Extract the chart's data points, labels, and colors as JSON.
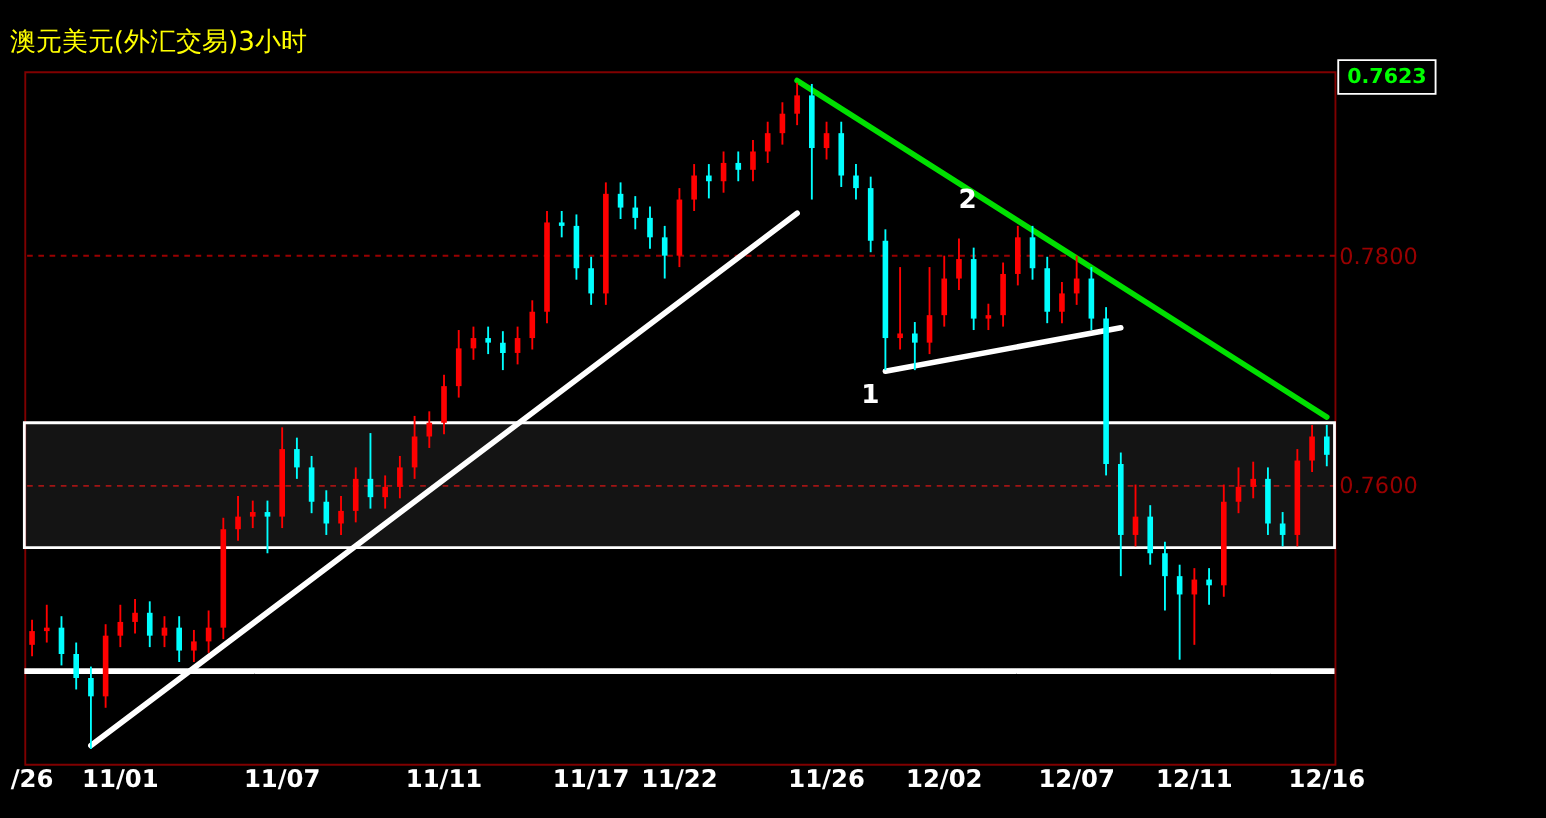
{
  "chart_data": {
    "type": "candlestick",
    "title": "澳元美元(外汇交易)3小时",
    "categories": [
      "/26",
      null,
      null,
      null,
      null,
      null,
      "11/01",
      null,
      null,
      null,
      null,
      null,
      null,
      null,
      null,
      null,
      null,
      "11/07",
      null,
      null,
      null,
      null,
      null,
      null,
      null,
      null,
      null,
      null,
      "11/11",
      null,
      null,
      null,
      null,
      null,
      null,
      null,
      null,
      null,
      "11/17",
      null,
      null,
      null,
      null,
      null,
      "11/22",
      null,
      null,
      null,
      null,
      null,
      null,
      null,
      null,
      null,
      "11/26",
      null,
      null,
      null,
      null,
      null,
      null,
      null,
      "12/02",
      null,
      null,
      null,
      null,
      null,
      null,
      null,
      null,
      "12/07",
      null,
      null,
      null,
      null,
      null,
      null,
      null,
      "12/11",
      null,
      null,
      null,
      null,
      null,
      null,
      null,
      null,
      "12/16"
    ],
    "ohlc": [
      [
        0.746,
        0.7482,
        0.745,
        0.7472
      ],
      [
        0.7472,
        0.7495,
        0.7462,
        0.7475
      ],
      [
        0.7475,
        0.7485,
        0.7442,
        0.7452
      ],
      [
        0.7452,
        0.7462,
        0.7421,
        0.7431
      ],
      [
        0.7431,
        0.7441,
        0.7369,
        0.7415
      ],
      [
        0.7415,
        0.7478,
        0.7405,
        0.7468
      ],
      [
        0.7468,
        0.7495,
        0.7458,
        0.748
      ],
      [
        0.748,
        0.75,
        0.747,
        0.7488
      ],
      [
        0.7488,
        0.7498,
        0.7458,
        0.7468
      ],
      [
        0.7468,
        0.7485,
        0.7458,
        0.7475
      ],
      [
        0.7475,
        0.7485,
        0.7445,
        0.7455
      ],
      [
        0.7455,
        0.7473,
        0.7445,
        0.7463
      ],
      [
        0.7463,
        0.749,
        0.7453,
        0.7475
      ],
      [
        0.7475,
        0.7571,
        0.7465,
        0.7561
      ],
      [
        0.7561,
        0.759,
        0.7551,
        0.7572
      ],
      [
        0.7572,
        0.7586,
        0.7562,
        0.7576
      ],
      [
        0.7576,
        0.7586,
        0.754,
        0.7572
      ],
      [
        0.7572,
        0.765,
        0.7562,
        0.7631
      ],
      [
        0.7631,
        0.7641,
        0.7605,
        0.7615
      ],
      [
        0.7615,
        0.7625,
        0.7575,
        0.7585
      ],
      [
        0.7585,
        0.7595,
        0.7556,
        0.7566
      ],
      [
        0.7566,
        0.759,
        0.7556,
        0.7577
      ],
      [
        0.7577,
        0.7615,
        0.7567,
        0.7605
      ],
      [
        0.7605,
        0.7645,
        0.7579,
        0.7589
      ],
      [
        0.7589,
        0.7608,
        0.7579,
        0.7598
      ],
      [
        0.7598,
        0.7625,
        0.7588,
        0.7615
      ],
      [
        0.7615,
        0.766,
        0.7605,
        0.7642
      ],
      [
        0.7642,
        0.7664,
        0.7632,
        0.7654
      ],
      [
        0.7654,
        0.7696,
        0.7644,
        0.7686
      ],
      [
        0.7686,
        0.7735,
        0.7676,
        0.7719
      ],
      [
        0.7719,
        0.7738,
        0.7709,
        0.7728
      ],
      [
        0.7728,
        0.7738,
        0.7714,
        0.7724
      ],
      [
        0.7724,
        0.7734,
        0.77,
        0.7715
      ],
      [
        0.7715,
        0.7738,
        0.7705,
        0.7728
      ],
      [
        0.7728,
        0.7761,
        0.7718,
        0.7751
      ],
      [
        0.7751,
        0.7839,
        0.7741,
        0.7829
      ],
      [
        0.7829,
        0.7839,
        0.7816,
        0.7826
      ],
      [
        0.7826,
        0.7836,
        0.7779,
        0.7789
      ],
      [
        0.7789,
        0.7799,
        0.7757,
        0.7767
      ],
      [
        0.7767,
        0.7864,
        0.7757,
        0.7854
      ],
      [
        0.7854,
        0.7864,
        0.7832,
        0.7842
      ],
      [
        0.7842,
        0.7852,
        0.7823,
        0.7833
      ],
      [
        0.7833,
        0.7843,
        0.7806,
        0.7816
      ],
      [
        0.7816,
        0.7826,
        0.778,
        0.78
      ],
      [
        0.78,
        0.7859,
        0.779,
        0.7849
      ],
      [
        0.7849,
        0.788,
        0.7839,
        0.787
      ],
      [
        0.787,
        0.788,
        0.785,
        0.7865
      ],
      [
        0.7865,
        0.7891,
        0.7855,
        0.7881
      ],
      [
        0.7881,
        0.7891,
        0.7865,
        0.7875
      ],
      [
        0.7875,
        0.7901,
        0.7865,
        0.7891
      ],
      [
        0.7891,
        0.7917,
        0.7881,
        0.7907
      ],
      [
        0.7907,
        0.7934,
        0.7897,
        0.7924
      ],
      [
        0.7924,
        0.7951,
        0.7914,
        0.794
      ],
      [
        0.794,
        0.795,
        0.7849,
        0.7894
      ],
      [
        0.7894,
        0.7917,
        0.7884,
        0.7907
      ],
      [
        0.7907,
        0.7917,
        0.786,
        0.787
      ],
      [
        0.787,
        0.788,
        0.7849,
        0.7859
      ],
      [
        0.7859,
        0.7869,
        0.7803,
        0.7813
      ],
      [
        0.7813,
        0.7823,
        0.77,
        0.7728
      ],
      [
        0.7728,
        0.779,
        0.7718,
        0.7732
      ],
      [
        0.7732,
        0.7742,
        0.77,
        0.7724
      ],
      [
        0.7724,
        0.779,
        0.7714,
        0.7748
      ],
      [
        0.7748,
        0.78,
        0.7738,
        0.778
      ],
      [
        0.778,
        0.7815,
        0.777,
        0.7797
      ],
      [
        0.7797,
        0.7807,
        0.7735,
        0.7745
      ],
      [
        0.7745,
        0.7758,
        0.7735,
        0.7748
      ],
      [
        0.7748,
        0.7794,
        0.7738,
        0.7784
      ],
      [
        0.7784,
        0.7826,
        0.7774,
        0.7816
      ],
      [
        0.7816,
        0.7826,
        0.7779,
        0.7789
      ],
      [
        0.7789,
        0.7799,
        0.7741,
        0.7751
      ],
      [
        0.7751,
        0.7777,
        0.7741,
        0.7767
      ],
      [
        0.7767,
        0.78,
        0.7757,
        0.778
      ],
      [
        0.778,
        0.779,
        0.7735,
        0.7745
      ],
      [
        0.7745,
        0.7755,
        0.7608,
        0.7618
      ],
      [
        0.7618,
        0.7628,
        0.752,
        0.7556
      ],
      [
        0.7556,
        0.76,
        0.7546,
        0.7572
      ],
      [
        0.7572,
        0.7582,
        0.753,
        0.754
      ],
      [
        0.754,
        0.755,
        0.749,
        0.752
      ],
      [
        0.752,
        0.753,
        0.7447,
        0.7504
      ],
      [
        0.7504,
        0.7527,
        0.746,
        0.7517
      ],
      [
        0.7517,
        0.7527,
        0.7495,
        0.7512
      ],
      [
        0.7512,
        0.76,
        0.7502,
        0.7585
      ],
      [
        0.7585,
        0.7615,
        0.7575,
        0.7598
      ],
      [
        0.7598,
        0.762,
        0.7588,
        0.7605
      ],
      [
        0.7605,
        0.7615,
        0.7556,
        0.7566
      ],
      [
        0.7566,
        0.7576,
        0.7546,
        0.7556
      ],
      [
        0.7556,
        0.7631,
        0.7546,
        0.7621
      ],
      [
        0.7621,
        0.7652,
        0.7611,
        0.7642
      ],
      [
        0.7642,
        0.7652,
        0.7616,
        0.7626
      ]
    ],
    "colors": [
      "#ff0000",
      "#ff0000",
      "#00ffff",
      "#00ffff",
      "#00ffff",
      "#ff0000",
      "#ff0000",
      "#ff0000",
      "#00ffff",
      "#ff0000",
      "#00ffff",
      "#ff0000",
      "#ff0000",
      "#ff0000",
      "#ff0000",
      "#ff0000",
      "#00ffff",
      "#ff0000",
      "#00ffff",
      "#00ffff",
      "#00ffff",
      "#ff0000",
      "#ff0000",
      "#00ffff",
      "#ff0000",
      "#ff0000",
      "#ff0000",
      "#ff0000",
      "#ff0000",
      "#ff0000",
      "#ff0000",
      "#00ffff",
      "#00ffff",
      "#ff0000",
      "#ff0000",
      "#ff0000",
      "#00ffff",
      "#00ffff",
      "#00ffff",
      "#ff0000",
      "#00ffff",
      "#00ffff",
      "#00ffff",
      "#00ffff",
      "#ff0000",
      "#ff0000",
      "#00ffff",
      "#ff0000",
      "#00ffff",
      "#ff0000",
      "#ff0000",
      "#ff0000",
      "#ff0000",
      "#00ffff",
      "#ff0000",
      "#00ffff",
      "#00ffff",
      "#00ffff",
      "#00ffff",
      "#ff0000",
      "#00ffff",
      "#ff0000",
      "#ff0000",
      "#ff0000",
      "#00ffff",
      "#ff0000",
      "#ff0000",
      "#ff0000",
      "#00ffff",
      "#00ffff",
      "#ff0000",
      "#ff0000",
      "#00ffff",
      "#00ffff",
      "#00ffff",
      "#ff0000",
      "#00ffff",
      "#00ffff",
      "#00ffff",
      "#ff0000",
      "#00ffff",
      "#ff0000",
      "#ff0000",
      "#ff0000",
      "#00ffff",
      "#00ffff",
      "#ff0000",
      "#ff0000",
      "#00ffff"
    ],
    "series": [
      {
        "type": "line",
        "color": "#ffffff",
        "values": [
          null,
          null,
          null,
          null,
          0.7372,
          null,
          null,
          null,
          null,
          null,
          null,
          null,
          null,
          null,
          null,
          null,
          null,
          null,
          null,
          null,
          null,
          null,
          null,
          null,
          null,
          null,
          null,
          null,
          null,
          null,
          null,
          null,
          null,
          null,
          null,
          null,
          null,
          null,
          null,
          null,
          null,
          null,
          null,
          null,
          null,
          null,
          null,
          null,
          null,
          null,
          null,
          null,
          0.7837,
          null,
          null,
          null,
          null,
          null,
          null,
          null,
          null,
          null,
          null,
          null,
          null,
          null,
          null,
          null,
          null,
          null,
          null,
          null,
          null,
          null,
          null,
          null,
          null,
          null,
          null,
          null,
          null,
          null,
          null,
          null,
          null,
          null,
          null,
          null,
          null
        ]
      },
      {
        "type": "line",
        "color": "#00e000",
        "values": [
          null,
          null,
          null,
          null,
          null,
          null,
          null,
          null,
          null,
          null,
          null,
          null,
          null,
          null,
          null,
          null,
          null,
          null,
          null,
          null,
          null,
          null,
          null,
          null,
          null,
          null,
          null,
          null,
          null,
          null,
          null,
          null,
          null,
          null,
          null,
          null,
          null,
          null,
          null,
          null,
          null,
          null,
          null,
          null,
          null,
          null,
          null,
          null,
          null,
          null,
          null,
          null,
          0.7953,
          null,
          null,
          null,
          null,
          null,
          null,
          null,
          null,
          null,
          null,
          null,
          null,
          null,
          null,
          null,
          null,
          null,
          null,
          null,
          null,
          null,
          null,
          null,
          null,
          null,
          null,
          null,
          null,
          null,
          null,
          null,
          null,
          null,
          null,
          null,
          0.7659
        ]
      },
      {
        "type": "line",
        "color": "#ffffff",
        "values": [
          null,
          null,
          null,
          null,
          null,
          null,
          null,
          null,
          null,
          null,
          null,
          null,
          null,
          null,
          null,
          null,
          null,
          null,
          null,
          null,
          null,
          null,
          null,
          null,
          null,
          null,
          null,
          null,
          null,
          null,
          null,
          null,
          null,
          null,
          null,
          null,
          null,
          null,
          null,
          null,
          null,
          null,
          null,
          null,
          null,
          null,
          null,
          null,
          null,
          null,
          null,
          null,
          null,
          null,
          null,
          null,
          null,
          null,
          0.7699,
          null,
          null,
          null,
          null,
          null,
          null,
          null,
          null,
          null,
          null,
          null,
          null,
          null,
          null,
          null,
          0.7737,
          null,
          null,
          null,
          null,
          null,
          null,
          null,
          null,
          null,
          null,
          null,
          null,
          null,
          null
        ]
      }
    ],
    "ylim": [
      0.7356,
      0.7961
    ],
    "yticks": [
      {
        "value": 0.78,
        "label": "0.7800"
      },
      {
        "value": 0.76,
        "label": "0.7600"
      }
    ],
    "grid": "y",
    "ref_lines": [
      {
        "axis": "y",
        "value": 0.7437,
        "color": "#ffffff"
      }
    ],
    "bands": [
      {
        "axis": "y",
        "from": 0.7545,
        "to": 0.7654,
        "color": "#ffffff"
      }
    ],
    "annotations": [
      "0.7623",
      "1",
      "2"
    ]
  }
}
